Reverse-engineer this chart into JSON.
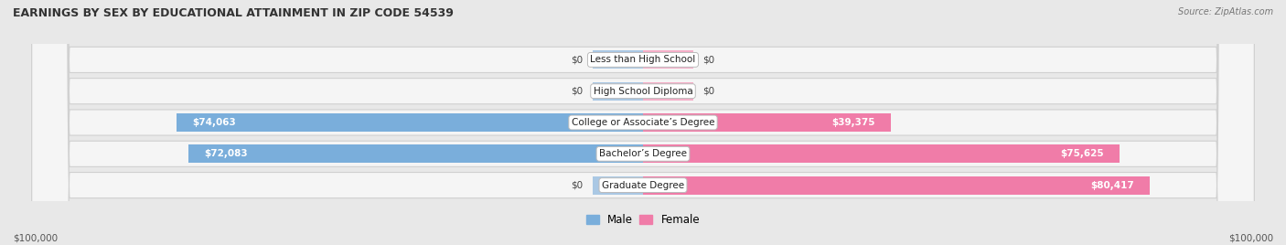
{
  "title": "EARNINGS BY SEX BY EDUCATIONAL ATTAINMENT IN ZIP CODE 54539",
  "source": "Source: ZipAtlas.com",
  "categories": [
    "Less than High School",
    "High School Diploma",
    "College or Associate’s Degree",
    "Bachelor’s Degree",
    "Graduate Degree"
  ],
  "male_values": [
    0,
    0,
    74063,
    72083,
    0
  ],
  "female_values": [
    0,
    0,
    39375,
    75625,
    80417
  ],
  "male_color": "#7aaedb",
  "female_color": "#f07ca8",
  "male_stub_color": "#aac8e4",
  "female_stub_color": "#f5aec8",
  "stub_val": 8000,
  "bar_height": 0.58,
  "max_val": 100000,
  "background_color": "#e8e8e8",
  "row_bg_color": "#f5f5f5",
  "row_edge_color": "#d0d0d0",
  "legend_male": "Male",
  "legend_female": "Female",
  "xlabel_left": "$100,000",
  "xlabel_right": "$100,000",
  "title_fontsize": 9,
  "label_fontsize": 7.5,
  "value_fontsize": 7.5
}
